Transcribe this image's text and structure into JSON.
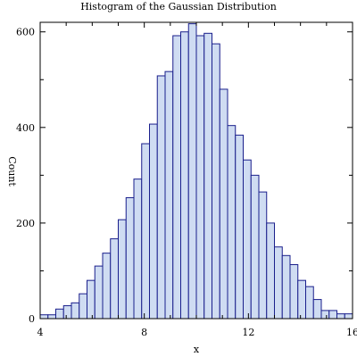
{
  "chart_data": {
    "type": "bar",
    "title": "Histogram of the Gaussian Distribution",
    "xlabel": "x",
    "ylabel": "Count",
    "xlim": [
      4,
      16
    ],
    "ylim": [
      0,
      620
    ],
    "bin_width": 0.3,
    "x_ticks": [
      4,
      8,
      12,
      16
    ],
    "y_ticks": [
      0,
      200,
      400,
      600
    ],
    "x_minor_ticks": [
      5,
      6,
      7,
      9,
      10,
      11,
      13,
      14,
      15
    ],
    "y_minor_ticks": [
      100,
      300,
      500
    ],
    "bins": [
      {
        "x0": 4.0,
        "count": 8
      },
      {
        "x0": 4.3,
        "count": 8
      },
      {
        "x0": 4.6,
        "count": 20
      },
      {
        "x0": 4.9,
        "count": 27
      },
      {
        "x0": 5.2,
        "count": 33
      },
      {
        "x0": 5.5,
        "count": 52
      },
      {
        "x0": 5.8,
        "count": 80
      },
      {
        "x0": 6.1,
        "count": 110
      },
      {
        "x0": 6.4,
        "count": 137
      },
      {
        "x0": 6.7,
        "count": 167
      },
      {
        "x0": 7.0,
        "count": 207
      },
      {
        "x0": 7.3,
        "count": 253
      },
      {
        "x0": 7.6,
        "count": 292
      },
      {
        "x0": 7.9,
        "count": 366
      },
      {
        "x0": 8.2,
        "count": 407
      },
      {
        "x0": 8.5,
        "count": 508
      },
      {
        "x0": 8.8,
        "count": 517
      },
      {
        "x0": 9.1,
        "count": 592
      },
      {
        "x0": 9.4,
        "count": 600
      },
      {
        "x0": 9.7,
        "count": 617
      },
      {
        "x0": 10.0,
        "count": 592
      },
      {
        "x0": 10.3,
        "count": 597
      },
      {
        "x0": 10.6,
        "count": 575
      },
      {
        "x0": 10.9,
        "count": 480
      },
      {
        "x0": 11.2,
        "count": 404
      },
      {
        "x0": 11.5,
        "count": 384
      },
      {
        "x0": 11.8,
        "count": 332
      },
      {
        "x0": 12.1,
        "count": 300
      },
      {
        "x0": 12.4,
        "count": 265
      },
      {
        "x0": 12.7,
        "count": 200
      },
      {
        "x0": 13.0,
        "count": 150
      },
      {
        "x0": 13.3,
        "count": 132
      },
      {
        "x0": 13.6,
        "count": 113
      },
      {
        "x0": 13.9,
        "count": 80
      },
      {
        "x0": 14.2,
        "count": 67
      },
      {
        "x0": 14.5,
        "count": 40
      },
      {
        "x0": 14.8,
        "count": 17
      },
      {
        "x0": 15.1,
        "count": 17
      },
      {
        "x0": 15.4,
        "count": 10
      },
      {
        "x0": 15.7,
        "count": 10
      }
    ],
    "grid": false,
    "colors": {
      "bar_fill": "#cfdcf2",
      "bar_stroke": "#1a1f8c",
      "axis": "#000000"
    }
  }
}
